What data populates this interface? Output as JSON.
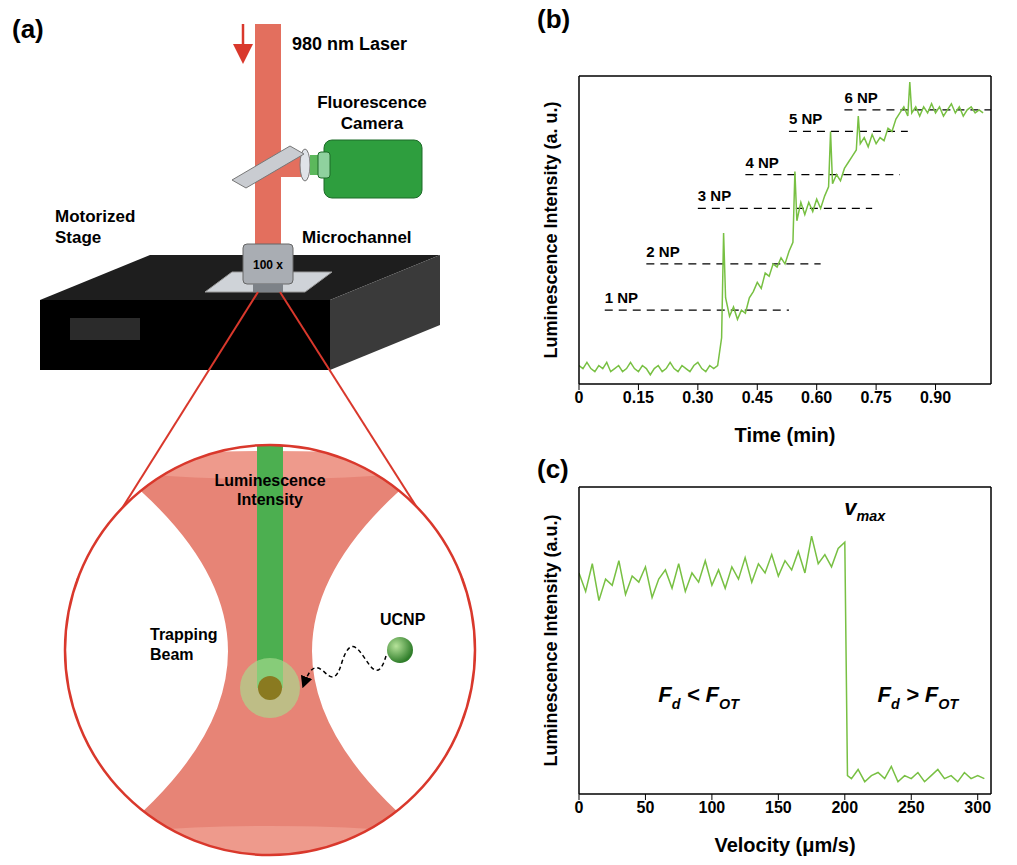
{
  "diagram": {
    "panel": "(a)",
    "laser": "980 nm Laser",
    "camera": "Fluorescence Camera",
    "stage": "Motorized Stage",
    "objective": "100 x",
    "channel": "Microchannel",
    "signal": "Luminescence Intensity",
    "beam": "Trapping Beam",
    "particle": "UCNP"
  },
  "chart_data": [
    {
      "type": "line",
      "title": "(b)",
      "xlabel": "Time (min)",
      "ylabel": "Luminescence Intensity (a. u.)",
      "color": "#78c043",
      "xlim": [
        0,
        1.04
      ],
      "xticks": [
        0,
        0.15,
        {
          "value": 0.3,
          "label": "0.30"
        },
        0.45,
        {
          "value": 0.6,
          "label": "0.60"
        },
        0.75,
        {
          "value": 0.9,
          "label": "0.90"
        }
      ],
      "ylim": [
        0,
        10
      ],
      "tick_labels": "x",
      "x": [
        0,
        0.01,
        0.02,
        0.03,
        0.04,
        0.05,
        0.06,
        0.07,
        0.08,
        0.09,
        0.1,
        0.11,
        0.12,
        0.13,
        0.14,
        0.15,
        0.16,
        0.17,
        0.18,
        0.19,
        0.2,
        0.21,
        0.22,
        0.23,
        0.24,
        0.25,
        0.26,
        0.27,
        0.28,
        0.29,
        0.3,
        0.31,
        0.32,
        0.33,
        0.34,
        0.35,
        0.36,
        0.365,
        0.37,
        0.38,
        0.39,
        0.4,
        0.41,
        0.42,
        0.43,
        0.44,
        0.45,
        0.46,
        0.47,
        0.48,
        0.49,
        0.5,
        0.51,
        0.52,
        0.53,
        0.54,
        0.545,
        0.55,
        0.56,
        0.57,
        0.58,
        0.59,
        0.6,
        0.61,
        0.62,
        0.63,
        0.635,
        0.64,
        0.65,
        0.66,
        0.67,
        0.68,
        0.69,
        0.7,
        0.705,
        0.71,
        0.72,
        0.73,
        0.74,
        0.75,
        0.76,
        0.77,
        0.78,
        0.79,
        0.8,
        0.81,
        0.82,
        0.83,
        0.835,
        0.84,
        0.85,
        0.86,
        0.87,
        0.88,
        0.89,
        0.9,
        0.91,
        0.92,
        0.93,
        0.94,
        0.95,
        0.96,
        0.97,
        0.98,
        0.99,
        1,
        1.01,
        1.02
      ],
      "values": [
        0.6,
        0.5,
        0.7,
        0.5,
        0.4,
        0.6,
        0.5,
        0.7,
        0.4,
        0.5,
        0.6,
        0.4,
        0.5,
        0.7,
        0.5,
        0.4,
        0.6,
        0.5,
        0.3,
        0.5,
        0.6,
        0.4,
        0.5,
        0.7,
        0.5,
        0.4,
        0.6,
        0.5,
        0.4,
        0.6,
        0.7,
        0.5,
        0.4,
        0.6,
        0.5,
        0.6,
        1.5,
        4.9,
        2.8,
        2.2,
        2.5,
        2.1,
        2.4,
        2.3,
        2.8,
        3.0,
        3.3,
        3.1,
        3.6,
        3.5,
        3.9,
        3.8,
        4.1,
        3.9,
        4.3,
        4.6,
        6.9,
        5.3,
        5.9,
        5.5,
        5.9,
        5.6,
        6.0,
        5.7,
        6.1,
        6.4,
        8.2,
        6.5,
        6.8,
        6.6,
        7.0,
        7.2,
        7.4,
        7.6,
        8.7,
        7.8,
        8.0,
        7.7,
        8.1,
        7.8,
        8.0,
        7.9,
        8.3,
        8.2,
        8.6,
        8.8,
        9.0,
        8.7,
        9.8,
        8.8,
        9.0,
        8.7,
        9.0,
        8.8,
        9.1,
        8.8,
        9.0,
        8.7,
        8.9,
        9.1,
        8.8,
        9.0,
        8.7,
        8.9,
        9.0,
        8.8,
        8.9,
        8.8
      ],
      "annotations": [
        {
          "text": "1 NP",
          "x": [
            0.065,
            0.53
          ],
          "y": 2.4
        },
        {
          "text": "2 NP",
          "x": [
            0.17,
            0.61
          ],
          "y": 3.9
        },
        {
          "text": "3 NP",
          "x": [
            0.3,
            0.74
          ],
          "y": 5.7
        },
        {
          "text": "4 NP",
          "x": [
            0.42,
            0.81
          ],
          "y": 6.8
        },
        {
          "text": "5 NP",
          "x": [
            0.53,
            0.83
          ],
          "y": 8.2
        },
        {
          "text": "6 NP",
          "x": [
            0.67,
            1.04
          ],
          "y": 8.9
        }
      ]
    },
    {
      "type": "line",
      "title": "(c)",
      "xlabel": "Velocity (μm/s)",
      "ylabel": "Luminescence Intensity (a.u.)",
      "color": "#78c043",
      "xlim": [
        0,
        310
      ],
      "xticks": [
        0,
        50,
        100,
        150,
        200,
        250,
        300
      ],
      "ylim": [
        0,
        10
      ],
      "tick_labels": "x",
      "x": [
        0,
        5,
        10,
        15,
        20,
        25,
        30,
        35,
        40,
        45,
        50,
        55,
        60,
        65,
        70,
        75,
        80,
        85,
        90,
        95,
        100,
        105,
        110,
        115,
        120,
        125,
        130,
        135,
        140,
        145,
        150,
        155,
        160,
        165,
        170,
        175,
        180,
        185,
        190,
        195,
        200,
        202,
        205,
        210,
        215,
        220,
        225,
        230,
        235,
        240,
        245,
        250,
        255,
        260,
        265,
        270,
        275,
        280,
        285,
        290,
        295,
        300,
        305
      ],
      "values": [
        7.2,
        6.6,
        7.5,
        6.3,
        7.0,
        6.8,
        7.6,
        6.5,
        7.1,
        6.9,
        7.4,
        6.4,
        7.0,
        7.3,
        6.7,
        7.5,
        6.6,
        7.2,
        6.9,
        7.6,
        6.8,
        7.3,
        6.7,
        7.4,
        7.0,
        7.7,
        6.9,
        7.5,
        7.2,
        7.8,
        7.1,
        7.6,
        7.3,
        7.9,
        7.2,
        8.4,
        7.5,
        7.8,
        7.4,
        8.0,
        8.2,
        0.6,
        0.5,
        0.8,
        0.4,
        0.6,
        0.7,
        0.5,
        0.9,
        0.4,
        0.6,
        0.5,
        0.7,
        0.4,
        0.6,
        0.8,
        0.5,
        0.6,
        0.4,
        0.7,
        0.5,
        0.6,
        0.5
      ],
      "annotations": [
        {
          "parts": [
            "v",
            "max"
          ],
          "x": 215,
          "y": 9.1
        },
        {
          "parts": [
            "F",
            "d",
            " < F",
            "OT"
          ],
          "x": 90,
          "y": 3.0
        },
        {
          "parts": [
            "F",
            "d",
            " > F",
            "OT"
          ],
          "x": 255,
          "y": 3.0
        }
      ]
    }
  ]
}
